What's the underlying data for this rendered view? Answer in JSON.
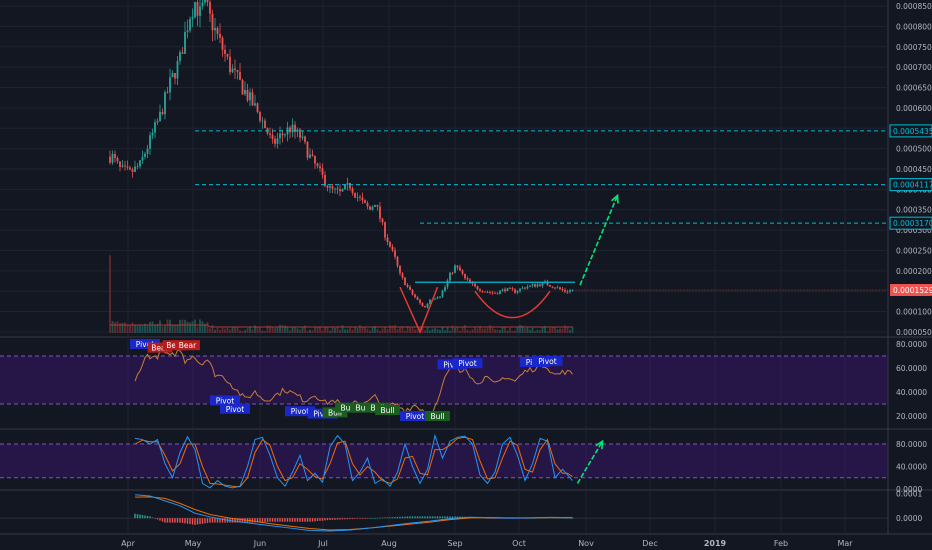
{
  "theme": {
    "background": "#131722",
    "grid": "#1f2330",
    "up": "#26a69a",
    "down": "#ef5350",
    "levels": "#00bcd4",
    "current_price_bg": "#ef5350",
    "arrow": "#00e676",
    "band_fill": "#4a148c",
    "rsi_line": "#c77c3a",
    "stoch_k": "#2196f3",
    "stoch_d": "#ef6c00",
    "macd_line": "#2196f3",
    "macd_signal": "#ef6c00"
  },
  "chart_data": [
    {
      "type": "candlestick",
      "panel": "price",
      "x_ticks": [
        "Apr",
        "May",
        "Jun",
        "Jul",
        "Aug",
        "Sep",
        "Oct",
        "Nov",
        "Dec",
        "2019",
        "Feb",
        "Mar"
      ],
      "y_ticks": [
        "0.0008500",
        "0.0008000",
        "0.0007500",
        "0.0007000",
        "0.0006500",
        "0.0006000",
        "0.0005500",
        "0.0005000",
        "0.0004500",
        "0.0004000",
        "0.0003500",
        "0.0003000",
        "0.0002500",
        "0.0002000",
        "0.0001500",
        "0.0001000",
        "0.0000500"
      ],
      "ylim": [
        4e-05,
        0.00086
      ],
      "close_path": [
        [
          1,
          0.00048
        ],
        [
          4,
          0.00045
        ],
        [
          8,
          0.00044
        ],
        [
          12,
          0.00046
        ],
        [
          16,
          0.00052
        ],
        [
          20,
          0.00058
        ],
        [
          24,
          0.00066
        ],
        [
          28,
          0.00072
        ],
        [
          30,
          0.00078
        ],
        [
          32,
          0.00083
        ],
        [
          34,
          0.00086
        ],
        [
          36,
          0.00083
        ],
        [
          38,
          0.00086
        ],
        [
          40,
          0.00082
        ],
        [
          44,
          0.00076
        ],
        [
          48,
          0.0007
        ],
        [
          52,
          0.00066
        ],
        [
          56,
          0.00062
        ],
        [
          60,
          0.00058
        ],
        [
          63,
          0.00054
        ],
        [
          65,
          0.00051
        ],
        [
          68,
          0.00053
        ],
        [
          72,
          0.00055
        ],
        [
          76,
          0.00053
        ],
        [
          80,
          0.00048
        ],
        [
          84,
          0.00044
        ],
        [
          88,
          0.0004
        ],
        [
          92,
          0.00039
        ],
        [
          94,
          0.0004
        ],
        [
          96,
          0.00041
        ],
        [
          98,
          0.00039
        ],
        [
          102,
          0.00036
        ],
        [
          104,
          0.00035
        ],
        [
          106,
          0.00037
        ],
        [
          108,
          0.00033
        ],
        [
          110,
          0.00029
        ],
        [
          112,
          0.00026
        ],
        [
          114,
          0.00023
        ],
        [
          116,
          0.00019
        ],
        [
          118,
          0.00017
        ],
        [
          120,
          0.00015
        ],
        [
          124,
          0.00012
        ],
        [
          126,
          0.00011
        ],
        [
          128,
          0.00013
        ],
        [
          132,
          0.00014
        ],
        [
          134,
          0.00016
        ],
        [
          136,
          0.00019
        ],
        [
          138,
          0.00021
        ],
        [
          140,
          0.0002
        ],
        [
          142,
          0.00018
        ],
        [
          146,
          0.00016
        ],
        [
          150,
          0.00015
        ],
        [
          154,
          0.000145
        ],
        [
          158,
          0.000155
        ],
        [
          162,
          0.00015
        ],
        [
          166,
          0.00016
        ],
        [
          170,
          0.000165
        ],
        [
          174,
          0.00017
        ],
        [
          178,
          0.00016
        ],
        [
          182,
          0.00015
        ],
        [
          185,
          0.000153
        ]
      ],
      "levels": [
        {
          "label": "0.0005435",
          "value": 0.0005435,
          "x_start": 34,
          "x_end": 440
        },
        {
          "label": "0.0004117",
          "value": 0.0004117,
          "x_start": 34,
          "x_end": 440
        },
        {
          "label": "0.0003170",
          "value": 0.000317,
          "x_start": 124,
          "x_end": 440
        }
      ],
      "resistance": {
        "value": 0.000172,
        "x_start": 122,
        "x_end": 186
      },
      "current_price": {
        "label": "0.0001529",
        "value": 0.0001529
      },
      "arrow": {
        "x_start": 188,
        "y_start": 0.000165,
        "x_end": 203,
        "y_end": 0.000385
      },
      "v_mark": {
        "x_left": 116,
        "x_bottom": 124,
        "x_right": 131,
        "y_top": 0.00016,
        "y_bottom": 5e-05
      },
      "cup_mark": {
        "x_start": 146,
        "x_end": 176,
        "y_edge": 0.00015,
        "y_bottom": 8.5e-05
      }
    },
    {
      "type": "line",
      "panel": "rsi",
      "y_ticks": [
        "80.0000",
        "60.0000",
        "40.0000",
        "20.0000"
      ],
      "band": [
        30,
        70
      ],
      "ylim": [
        10,
        85
      ],
      "path": [
        [
          10,
          48
        ],
        [
          12,
          60
        ],
        [
          15,
          71
        ],
        [
          18,
          68
        ],
        [
          21,
          74
        ],
        [
          24,
          69
        ],
        [
          28,
          75
        ],
        [
          30,
          66
        ],
        [
          33,
          71
        ],
        [
          36,
          64
        ],
        [
          39,
          67
        ],
        [
          42,
          55
        ],
        [
          46,
          52
        ],
        [
          50,
          43
        ],
        [
          54,
          34
        ],
        [
          58,
          40
        ],
        [
          62,
          33
        ],
        [
          66,
          37
        ],
        [
          70,
          42
        ],
        [
          74,
          38
        ],
        [
          78,
          33
        ],
        [
          82,
          38
        ],
        [
          86,
          31
        ],
        [
          90,
          33
        ],
        [
          94,
          27
        ],
        [
          98,
          33
        ],
        [
          102,
          30
        ],
        [
          106,
          36
        ],
        [
          110,
          27
        ],
        [
          114,
          30
        ],
        [
          118,
          25
        ],
        [
          122,
          29
        ],
        [
          126,
          24
        ],
        [
          128,
          22
        ],
        [
          130,
          27
        ],
        [
          132,
          37
        ],
        [
          134,
          52
        ],
        [
          136,
          58
        ],
        [
          138,
          65
        ],
        [
          140,
          57
        ],
        [
          142,
          62
        ],
        [
          146,
          47
        ],
        [
          150,
          52
        ],
        [
          154,
          46
        ],
        [
          158,
          53
        ],
        [
          162,
          49
        ],
        [
          166,
          57
        ],
        [
          170,
          60
        ],
        [
          174,
          63
        ],
        [
          178,
          54
        ],
        [
          182,
          57
        ],
        [
          185,
          55
        ]
      ],
      "signals": [
        {
          "text": "Pivot",
          "x": 14,
          "y": 80,
          "kind": "pivot"
        },
        {
          "text": "Bear",
          "x": 20,
          "y": 77,
          "kind": "bear"
        },
        {
          "text": "Bear",
          "x": 26,
          "y": 79,
          "kind": "bear"
        },
        {
          "text": "Bear",
          "x": 31,
          "y": 79,
          "kind": "bear"
        },
        {
          "text": "Pivot",
          "x": 46,
          "y": 33,
          "kind": "pivot"
        },
        {
          "text": "Pivot",
          "x": 50,
          "y": 26,
          "kind": "pivot"
        },
        {
          "text": "Pivot",
          "x": 76,
          "y": 24,
          "kind": "pivot"
        },
        {
          "text": "Pivot",
          "x": 85,
          "y": 22,
          "kind": "pivot"
        },
        {
          "text": "Bull",
          "x": 90,
          "y": 23,
          "kind": "bull"
        },
        {
          "text": "Bull",
          "x": 95,
          "y": 27,
          "kind": "bull"
        },
        {
          "text": "Bull",
          "x": 101,
          "y": 27,
          "kind": "bull"
        },
        {
          "text": "Bull",
          "x": 107,
          "y": 27,
          "kind": "bull"
        },
        {
          "text": "Bull",
          "x": 111,
          "y": 25,
          "kind": "bull"
        },
        {
          "text": "Pivot",
          "x": 122,
          "y": 20,
          "kind": "pivot"
        },
        {
          "text": "Bull",
          "x": 131,
          "y": 20,
          "kind": "bull"
        },
        {
          "text": "Pivot",
          "x": 137,
          "y": 63,
          "kind": "pivot"
        },
        {
          "text": "Pivot",
          "x": 143,
          "y": 64,
          "kind": "pivot"
        },
        {
          "text": "Pivot",
          "x": 170,
          "y": 65,
          "kind": "pivot"
        },
        {
          "text": "Pivot",
          "x": 175,
          "y": 66,
          "kind": "pivot"
        }
      ]
    },
    {
      "type": "line",
      "panel": "stochastic",
      "y_ticks": [
        "80.0000",
        "40.0000",
        "0.0000"
      ],
      "band": [
        20,
        80
      ],
      "ylim": [
        0,
        105
      ],
      "k": [
        [
          10,
          90
        ],
        [
          13,
          88
        ],
        [
          16,
          80
        ],
        [
          19,
          88
        ],
        [
          22,
          45
        ],
        [
          25,
          20
        ],
        [
          28,
          65
        ],
        [
          31,
          93
        ],
        [
          34,
          70
        ],
        [
          37,
          10
        ],
        [
          40,
          2
        ],
        [
          43,
          15
        ],
        [
          46,
          5
        ],
        [
          49,
          2
        ],
        [
          52,
          5
        ],
        [
          55,
          40
        ],
        [
          58,
          88
        ],
        [
          61,
          92
        ],
        [
          64,
          60
        ],
        [
          67,
          20
        ],
        [
          70,
          5
        ],
        [
          73,
          30
        ],
        [
          76,
          60
        ],
        [
          79,
          15
        ],
        [
          82,
          28
        ],
        [
          85,
          12
        ],
        [
          88,
          75
        ],
        [
          91,
          95
        ],
        [
          94,
          80
        ],
        [
          97,
          15
        ],
        [
          100,
          30
        ],
        [
          103,
          55
        ],
        [
          106,
          10
        ],
        [
          109,
          18
        ],
        [
          112,
          5
        ],
        [
          115,
          30
        ],
        [
          118,
          80
        ],
        [
          121,
          40
        ],
        [
          124,
          10
        ],
        [
          127,
          35
        ],
        [
          130,
          95
        ],
        [
          133,
          55
        ],
        [
          136,
          85
        ],
        [
          139,
          92
        ],
        [
          142,
          94
        ],
        [
          145,
          80
        ],
        [
          148,
          25
        ],
        [
          151,
          10
        ],
        [
          154,
          30
        ],
        [
          157,
          80
        ],
        [
          160,
          92
        ],
        [
          163,
          60
        ],
        [
          166,
          15
        ],
        [
          169,
          45
        ],
        [
          172,
          90
        ],
        [
          175,
          85
        ],
        [
          178,
          20
        ],
        [
          181,
          35
        ],
        [
          183,
          25
        ],
        [
          185,
          15
        ]
      ],
      "d": [
        [
          10,
          80
        ],
        [
          13,
          87
        ],
        [
          16,
          84
        ],
        [
          19,
          84
        ],
        [
          22,
          60
        ],
        [
          25,
          32
        ],
        [
          28,
          45
        ],
        [
          31,
          80
        ],
        [
          34,
          80
        ],
        [
          37,
          40
        ],
        [
          40,
          10
        ],
        [
          43,
          9
        ],
        [
          46,
          7
        ],
        [
          49,
          5
        ],
        [
          52,
          4
        ],
        [
          55,
          20
        ],
        [
          58,
          65
        ],
        [
          61,
          88
        ],
        [
          64,
          78
        ],
        [
          67,
          40
        ],
        [
          70,
          15
        ],
        [
          73,
          20
        ],
        [
          76,
          45
        ],
        [
          79,
          35
        ],
        [
          82,
          22
        ],
        [
          85,
          18
        ],
        [
          88,
          45
        ],
        [
          91,
          82
        ],
        [
          94,
          85
        ],
        [
          97,
          45
        ],
        [
          100,
          25
        ],
        [
          103,
          40
        ],
        [
          106,
          30
        ],
        [
          109,
          15
        ],
        [
          112,
          10
        ],
        [
          115,
          18
        ],
        [
          118,
          55
        ],
        [
          121,
          58
        ],
        [
          124,
          28
        ],
        [
          127,
          25
        ],
        [
          130,
          70
        ],
        [
          133,
          70
        ],
        [
          136,
          78
        ],
        [
          139,
          90
        ],
        [
          142,
          92
        ],
        [
          145,
          88
        ],
        [
          148,
          50
        ],
        [
          151,
          18
        ],
        [
          154,
          20
        ],
        [
          157,
          55
        ],
        [
          160,
          85
        ],
        [
          163,
          78
        ],
        [
          166,
          35
        ],
        [
          169,
          30
        ],
        [
          172,
          70
        ],
        [
          175,
          88
        ],
        [
          178,
          45
        ],
        [
          181,
          28
        ],
        [
          183,
          28
        ],
        [
          185,
          22
        ]
      ],
      "arrow": {
        "x_start": 187,
        "y_start": 10,
        "x_end": 197,
        "y_end": 85
      }
    },
    {
      "type": "line",
      "panel": "macd",
      "y_ticks": [
        "0.0001",
        "0.0000"
      ],
      "ylim": [
        -6e-05,
        0.00011
      ],
      "macd": [
        [
          10,
          9.5e-05
        ],
        [
          16,
          9e-05
        ],
        [
          22,
          7e-05
        ],
        [
          28,
          5e-05
        ],
        [
          34,
          2e-05
        ],
        [
          40,
          5e-06
        ],
        [
          48,
          -1e-05
        ],
        [
          56,
          -2e-05
        ],
        [
          64,
          -3e-05
        ],
        [
          72,
          -4e-05
        ],
        [
          80,
          -5e-05
        ],
        [
          88,
          -5.2e-05
        ],
        [
          96,
          -4.8e-05
        ],
        [
          104,
          -4e-05
        ],
        [
          112,
          -3e-05
        ],
        [
          120,
          -2e-05
        ],
        [
          128,
          -1.2e-05
        ],
        [
          136,
          -2e-06
        ],
        [
          144,
          4e-06
        ],
        [
          152,
          2e-06
        ],
        [
          160,
          0.0
        ],
        [
          168,
          1e-06
        ],
        [
          176,
          3e-06
        ],
        [
          185,
          2e-06
        ]
      ],
      "signal": [
        [
          10,
          8.5e-05
        ],
        [
          16,
          8.6e-05
        ],
        [
          22,
          8e-05
        ],
        [
          28,
          6e-05
        ],
        [
          34,
          3.5e-05
        ],
        [
          40,
          1.5e-05
        ],
        [
          48,
          0.0
        ],
        [
          56,
          -1e-05
        ],
        [
          64,
          -2.2e-05
        ],
        [
          72,
          -3.2e-05
        ],
        [
          80,
          -4.2e-05
        ],
        [
          88,
          -4.8e-05
        ],
        [
          96,
          -4.6e-05
        ],
        [
          104,
          -4e-05
        ],
        [
          112,
          -3.2e-05
        ],
        [
          120,
          -2.4e-05
        ],
        [
          128,
          -1.6e-05
        ],
        [
          136,
          -6e-06
        ],
        [
          144,
          1e-06
        ],
        [
          152,
          2e-06
        ],
        [
          160,
          1e-06
        ],
        [
          168,
          1e-06
        ],
        [
          176,
          2e-06
        ],
        [
          185,
          2e-06
        ]
      ]
    }
  ]
}
